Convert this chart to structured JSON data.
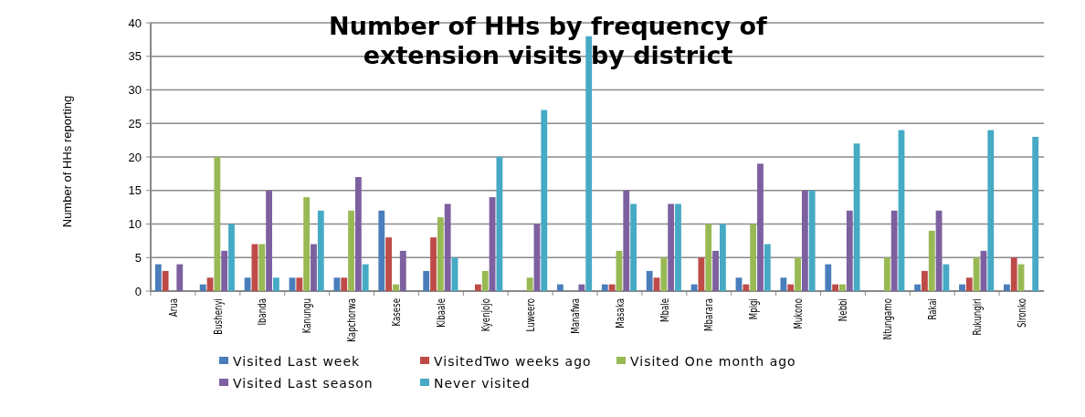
{
  "chart_data": {
    "type": "bar",
    "title": "Number of HHs by frequency of extension visits by district",
    "ylabel": "Number of HHs reporting",
    "categories": [
      "Arua",
      "Bushenyi",
      "Ibanda",
      "Kanungu",
      "Kapchorwa",
      "Kasese",
      "Kibaale",
      "Kyenjojo",
      "Luweero",
      "Manafwa",
      "Masaka",
      "Mbale",
      "Mbarara",
      "Mpigi",
      "Mukono",
      "Nebbi",
      "Ntungamo",
      "Rakai",
      "Rukungiri",
      "Sironko"
    ],
    "series": [
      {
        "name": "Visited Last week",
        "color": "#4a7ebb",
        "values": [
          4,
          1,
          2,
          2,
          2,
          12,
          3,
          0,
          0,
          1,
          1,
          3,
          1,
          2,
          2,
          4,
          0,
          1,
          1,
          1
        ]
      },
      {
        "name": "VisitedTwo weeks ago",
        "color": "#be4b48",
        "values": [
          3,
          2,
          7,
          2,
          2,
          8,
          8,
          1,
          0,
          0,
          1,
          2,
          5,
          1,
          1,
          1,
          0,
          3,
          2,
          5
        ]
      },
      {
        "name": "Visited One month ago",
        "color": "#98b954",
        "values": [
          0,
          20,
          7,
          14,
          12,
          1,
          11,
          3,
          2,
          0,
          6,
          5,
          10,
          10,
          5,
          1,
          5,
          9,
          5,
          4
        ]
      },
      {
        "name": "Visited Last season",
        "color": "#7d60a0",
        "values": [
          4,
          6,
          15,
          7,
          17,
          6,
          13,
          14,
          10,
          1,
          15,
          13,
          6,
          19,
          15,
          12,
          12,
          12,
          6,
          0
        ]
      },
      {
        "name": "Never visited",
        "color": "#46aac5",
        "values": [
          0,
          10,
          2,
          12,
          4,
          0,
          5,
          20,
          27,
          38,
          13,
          13,
          10,
          7,
          15,
          22,
          24,
          4,
          24,
          23
        ]
      }
    ],
    "ylim": [
      0,
      40
    ],
    "yticks": [
      0,
      5,
      10,
      15,
      20,
      25,
      30,
      35,
      40
    ],
    "grid": "y",
    "legend": "bottom"
  }
}
